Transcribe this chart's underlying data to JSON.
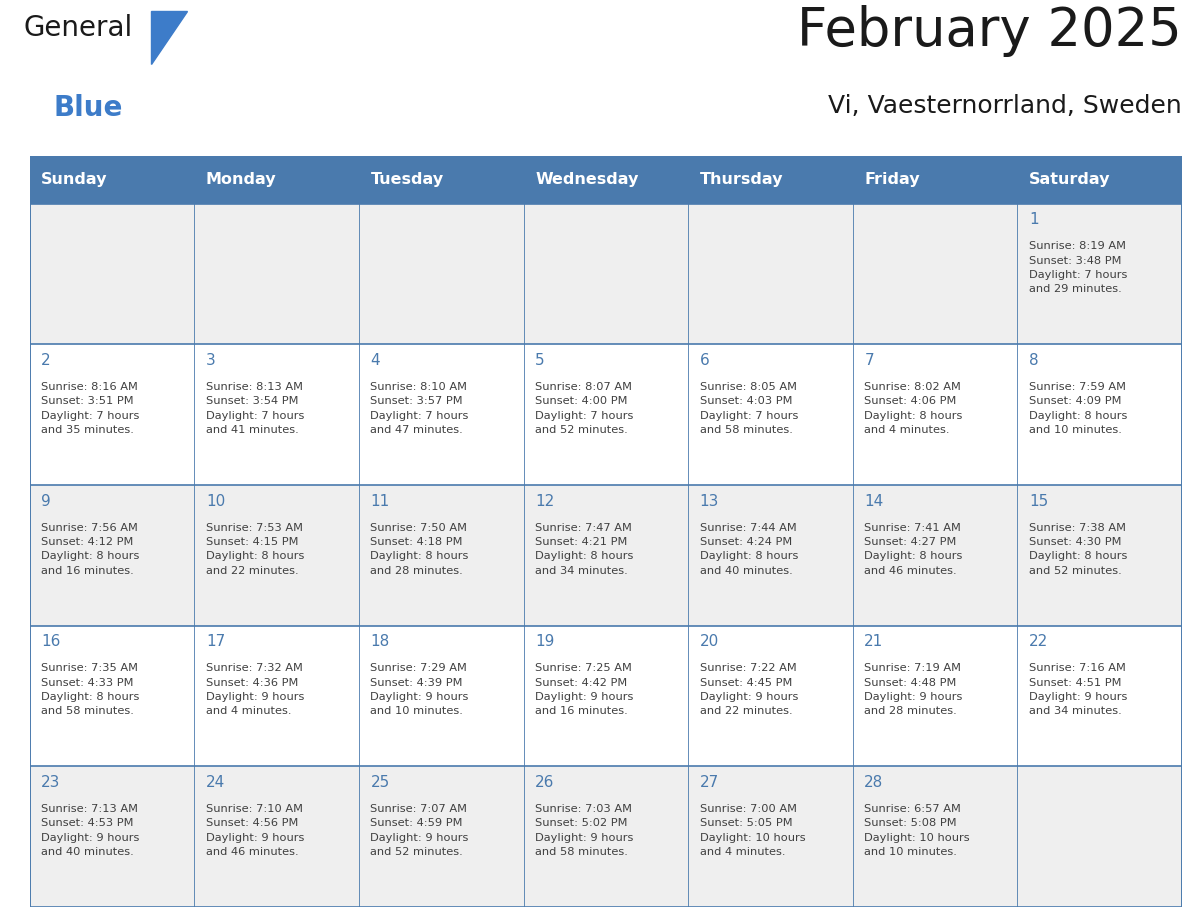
{
  "title": "February 2025",
  "subtitle": "Vi, Vaesternorrland, Sweden",
  "header_bg": "#4a7aad",
  "header_text": "#ffffff",
  "cell_bg_odd": "#efefef",
  "cell_bg_even": "#ffffff",
  "border_color": "#4a7aad",
  "day_num_color": "#4a7aad",
  "text_color": "#404040",
  "days_of_week": [
    "Sunday",
    "Monday",
    "Tuesday",
    "Wednesday",
    "Thursday",
    "Friday",
    "Saturday"
  ],
  "weeks": [
    [
      {
        "day": null,
        "info": null
      },
      {
        "day": null,
        "info": null
      },
      {
        "day": null,
        "info": null
      },
      {
        "day": null,
        "info": null
      },
      {
        "day": null,
        "info": null
      },
      {
        "day": null,
        "info": null
      },
      {
        "day": 1,
        "info": "Sunrise: 8:19 AM\nSunset: 3:48 PM\nDaylight: 7 hours\nand 29 minutes."
      }
    ],
    [
      {
        "day": 2,
        "info": "Sunrise: 8:16 AM\nSunset: 3:51 PM\nDaylight: 7 hours\nand 35 minutes."
      },
      {
        "day": 3,
        "info": "Sunrise: 8:13 AM\nSunset: 3:54 PM\nDaylight: 7 hours\nand 41 minutes."
      },
      {
        "day": 4,
        "info": "Sunrise: 8:10 AM\nSunset: 3:57 PM\nDaylight: 7 hours\nand 47 minutes."
      },
      {
        "day": 5,
        "info": "Sunrise: 8:07 AM\nSunset: 4:00 PM\nDaylight: 7 hours\nand 52 minutes."
      },
      {
        "day": 6,
        "info": "Sunrise: 8:05 AM\nSunset: 4:03 PM\nDaylight: 7 hours\nand 58 minutes."
      },
      {
        "day": 7,
        "info": "Sunrise: 8:02 AM\nSunset: 4:06 PM\nDaylight: 8 hours\nand 4 minutes."
      },
      {
        "day": 8,
        "info": "Sunrise: 7:59 AM\nSunset: 4:09 PM\nDaylight: 8 hours\nand 10 minutes."
      }
    ],
    [
      {
        "day": 9,
        "info": "Sunrise: 7:56 AM\nSunset: 4:12 PM\nDaylight: 8 hours\nand 16 minutes."
      },
      {
        "day": 10,
        "info": "Sunrise: 7:53 AM\nSunset: 4:15 PM\nDaylight: 8 hours\nand 22 minutes."
      },
      {
        "day": 11,
        "info": "Sunrise: 7:50 AM\nSunset: 4:18 PM\nDaylight: 8 hours\nand 28 minutes."
      },
      {
        "day": 12,
        "info": "Sunrise: 7:47 AM\nSunset: 4:21 PM\nDaylight: 8 hours\nand 34 minutes."
      },
      {
        "day": 13,
        "info": "Sunrise: 7:44 AM\nSunset: 4:24 PM\nDaylight: 8 hours\nand 40 minutes."
      },
      {
        "day": 14,
        "info": "Sunrise: 7:41 AM\nSunset: 4:27 PM\nDaylight: 8 hours\nand 46 minutes."
      },
      {
        "day": 15,
        "info": "Sunrise: 7:38 AM\nSunset: 4:30 PM\nDaylight: 8 hours\nand 52 minutes."
      }
    ],
    [
      {
        "day": 16,
        "info": "Sunrise: 7:35 AM\nSunset: 4:33 PM\nDaylight: 8 hours\nand 58 minutes."
      },
      {
        "day": 17,
        "info": "Sunrise: 7:32 AM\nSunset: 4:36 PM\nDaylight: 9 hours\nand 4 minutes."
      },
      {
        "day": 18,
        "info": "Sunrise: 7:29 AM\nSunset: 4:39 PM\nDaylight: 9 hours\nand 10 minutes."
      },
      {
        "day": 19,
        "info": "Sunrise: 7:25 AM\nSunset: 4:42 PM\nDaylight: 9 hours\nand 16 minutes."
      },
      {
        "day": 20,
        "info": "Sunrise: 7:22 AM\nSunset: 4:45 PM\nDaylight: 9 hours\nand 22 minutes."
      },
      {
        "day": 21,
        "info": "Sunrise: 7:19 AM\nSunset: 4:48 PM\nDaylight: 9 hours\nand 28 minutes."
      },
      {
        "day": 22,
        "info": "Sunrise: 7:16 AM\nSunset: 4:51 PM\nDaylight: 9 hours\nand 34 minutes."
      }
    ],
    [
      {
        "day": 23,
        "info": "Sunrise: 7:13 AM\nSunset: 4:53 PM\nDaylight: 9 hours\nand 40 minutes."
      },
      {
        "day": 24,
        "info": "Sunrise: 7:10 AM\nSunset: 4:56 PM\nDaylight: 9 hours\nand 46 minutes."
      },
      {
        "day": 25,
        "info": "Sunrise: 7:07 AM\nSunset: 4:59 PM\nDaylight: 9 hours\nand 52 minutes."
      },
      {
        "day": 26,
        "info": "Sunrise: 7:03 AM\nSunset: 5:02 PM\nDaylight: 9 hours\nand 58 minutes."
      },
      {
        "day": 27,
        "info": "Sunrise: 7:00 AM\nSunset: 5:05 PM\nDaylight: 10 hours\nand 4 minutes."
      },
      {
        "day": 28,
        "info": "Sunrise: 6:57 AM\nSunset: 5:08 PM\nDaylight: 10 hours\nand 10 minutes."
      },
      {
        "day": null,
        "info": null
      }
    ]
  ],
  "logo_color_general": "#1a1a1a",
  "logo_color_blue": "#3d7cc9",
  "logo_triangle_color": "#3d7cc9",
  "title_fontsize": 38,
  "subtitle_fontsize": 18,
  "header_fontsize": 11.5,
  "day_num_fontsize": 11,
  "info_fontsize": 8.2
}
